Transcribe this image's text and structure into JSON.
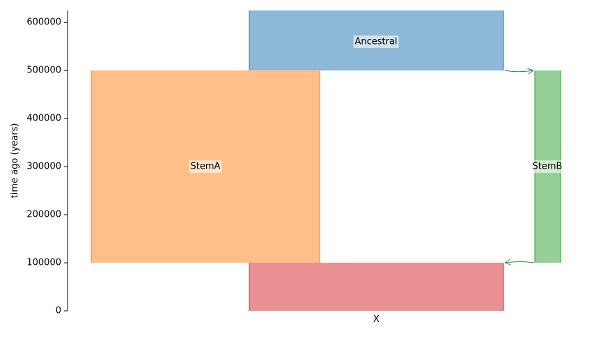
{
  "chart_data": {
    "type": "demography",
    "ylabel": "time ago (years)",
    "ylim": [
      0,
      625000
    ],
    "yticks": [
      0,
      100000,
      200000,
      300000,
      400000,
      500000,
      600000
    ],
    "ytick_labels": [
      "0",
      "100000",
      "200000",
      "300000",
      "400000",
      "500000",
      "600000"
    ],
    "demes": [
      {
        "name": "Ancestral",
        "label": "Ancestral",
        "start_time": "inf",
        "end_time": 500000,
        "fill": "#8db8d8",
        "stroke": "#1f77b4"
      },
      {
        "name": "StemA",
        "label": "StemA",
        "start_time": 500000,
        "end_time": 100000,
        "fill": "#ffbf87",
        "stroke": "#ff7f0e"
      },
      {
        "name": "StemB",
        "label": "StemB",
        "start_time": 500000,
        "end_time": 100000,
        "fill": "#95cf95",
        "stroke": "#2ca02c"
      },
      {
        "name": "X",
        "label": "X",
        "start_time": 100000,
        "end_time": 0,
        "fill": "#ea9092",
        "stroke": "#d62728"
      }
    ],
    "arrows": [
      {
        "from": "Ancestral",
        "to": "StemB",
        "time": 500000,
        "color": "#1f77b4"
      },
      {
        "from": "StemB",
        "to": "X",
        "time": 100000,
        "color": "#2ca02c"
      }
    ]
  }
}
